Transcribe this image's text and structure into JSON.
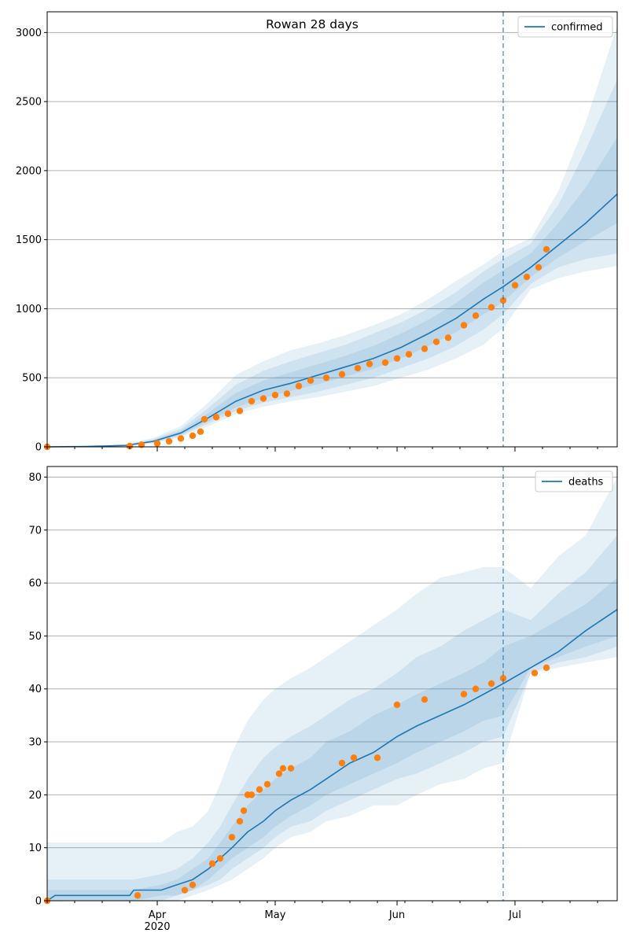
{
  "figure_title": "Rowan 28 days",
  "colors": {
    "model_line": "#1f77b4",
    "observed": "#ff7f0e",
    "band": "#1f77b4",
    "grid": "#b0b0b0",
    "forecast_marker": "#1f77b4"
  },
  "x_axis": {
    "ticks": [
      {
        "date": "2020-04-01",
        "label": "Apr"
      },
      {
        "date": "2020-05-01",
        "label": "May"
      },
      {
        "date": "2020-06-01",
        "label": "Jun"
      },
      {
        "date": "2020-07-01",
        "label": "Jul"
      }
    ],
    "year_label": "2020",
    "forecast_date": "2020-06-28"
  },
  "chart_data": [
    {
      "type": "line",
      "name": "confirmed",
      "legend": "confirmed",
      "legend_position": "top-right",
      "xlim": [
        "2020-03-04",
        "2020-07-27"
      ],
      "ylim": [
        0,
        3150
      ],
      "yticks": [
        0,
        500,
        1000,
        1500,
        2000,
        2500,
        3000
      ],
      "grid": "y",
      "dates": [
        "2020-03-04",
        "2020-03-14",
        "2020-03-24",
        "2020-03-31",
        "2020-04-07",
        "2020-04-14",
        "2020-04-21",
        "2020-04-28",
        "2020-05-05",
        "2020-05-12",
        "2020-05-19",
        "2020-05-26",
        "2020-06-02",
        "2020-06-09",
        "2020-06-16",
        "2020-06-23",
        "2020-06-28",
        "2020-07-05",
        "2020-07-12",
        "2020-07-19",
        "2020-07-27"
      ],
      "model": [
        0,
        2,
        10,
        40,
        100,
        210,
        330,
        410,
        460,
        520,
        580,
        640,
        720,
        820,
        930,
        1070,
        1160,
        1300,
        1460,
        1620,
        1830
      ],
      "bands": [
        {
          "lower": [
            0,
            0,
            5,
            25,
            70,
            150,
            240,
            290,
            330,
            360,
            400,
            440,
            500,
            560,
            640,
            740,
            860,
            1140,
            1220,
            1270,
            1310
          ],
          "upper": [
            0,
            5,
            18,
            65,
            150,
            320,
            520,
            620,
            700,
            750,
            810,
            880,
            960,
            1070,
            1200,
            1320,
            1420,
            1510,
            1850,
            2350,
            3050
          ]
        },
        {
          "lower": [
            0,
            1,
            6,
            30,
            80,
            170,
            260,
            320,
            360,
            400,
            450,
            500,
            570,
            640,
            730,
            850,
            960,
            1180,
            1300,
            1360,
            1400
          ],
          "upper": [
            0,
            3,
            15,
            55,
            130,
            280,
            450,
            550,
            620,
            680,
            740,
            820,
            900,
            1000,
            1120,
            1270,
            1360,
            1470,
            1750,
            2150,
            2660
          ]
        },
        {
          "lower": [
            0,
            1,
            8,
            33,
            88,
            185,
            285,
            355,
            405,
            455,
            510,
            565,
            640,
            730,
            830,
            960,
            1050,
            1230,
            1370,
            1490,
            1620
          ],
          "upper": [
            0,
            3,
            12,
            48,
            115,
            245,
            390,
            480,
            540,
            600,
            660,
            730,
            820,
            920,
            1040,
            1190,
            1280,
            1400,
            1620,
            1880,
            2240
          ]
        }
      ],
      "observed_dates": [
        "2020-03-04",
        "2020-03-25",
        "2020-03-28",
        "2020-04-01",
        "2020-04-04",
        "2020-04-07",
        "2020-04-10",
        "2020-04-12",
        "2020-04-13",
        "2020-04-16",
        "2020-04-19",
        "2020-04-22",
        "2020-04-25",
        "2020-04-28",
        "2020-05-01",
        "2020-05-04",
        "2020-05-07",
        "2020-05-10",
        "2020-05-14",
        "2020-05-18",
        "2020-05-22",
        "2020-05-25",
        "2020-05-29",
        "2020-06-01",
        "2020-06-04",
        "2020-06-08",
        "2020-06-11",
        "2020-06-14",
        "2020-06-18",
        "2020-06-21",
        "2020-06-25",
        "2020-06-28",
        "2020-07-01",
        "2020-07-04",
        "2020-07-07",
        "2020-07-09"
      ],
      "observed": [
        0,
        5,
        15,
        25,
        40,
        60,
        80,
        110,
        200,
        215,
        240,
        260,
        330,
        350,
        375,
        385,
        440,
        480,
        500,
        525,
        570,
        600,
        610,
        640,
        670,
        710,
        760,
        790,
        880,
        950,
        1010,
        1060,
        1170,
        1230,
        1300,
        1430
      ]
    },
    {
      "type": "line",
      "name": "deaths",
      "legend": "deaths",
      "legend_position": "top-right",
      "xlim": [
        "2020-03-04",
        "2020-07-27"
      ],
      "ylim": [
        0,
        82
      ],
      "yticks": [
        0,
        10,
        20,
        30,
        40,
        50,
        60,
        70,
        80
      ],
      "grid": "y",
      "dates": [
        "2020-03-04",
        "2020-03-06",
        "2020-03-25",
        "2020-03-26",
        "2020-04-02",
        "2020-04-06",
        "2020-04-10",
        "2020-04-14",
        "2020-04-17",
        "2020-04-20",
        "2020-04-24",
        "2020-04-28",
        "2020-05-01",
        "2020-05-05",
        "2020-05-10",
        "2020-05-14",
        "2020-05-20",
        "2020-05-26",
        "2020-06-01",
        "2020-06-06",
        "2020-06-12",
        "2020-06-18",
        "2020-06-23",
        "2020-06-28",
        "2020-07-05",
        "2020-07-12",
        "2020-07-19",
        "2020-07-27"
      ],
      "model": [
        0,
        1,
        1,
        2,
        2,
        3,
        4,
        6,
        8,
        10,
        13,
        15,
        17,
        19,
        21,
        23,
        26,
        28,
        31,
        33,
        35,
        37,
        39,
        41,
        44,
        47,
        51,
        55
      ],
      "bands": [
        {
          "lower": [
            0,
            0,
            0,
            0,
            0,
            0,
            1,
            2,
            3,
            4,
            6,
            8,
            10,
            12,
            13,
            15,
            16,
            18,
            18,
            20,
            22,
            23,
            25,
            26,
            43,
            44,
            45,
            46
          ],
          "upper": [
            11,
            11,
            11,
            11,
            11,
            13,
            14,
            17,
            22,
            28,
            34,
            38,
            40,
            42,
            44,
            46,
            49,
            52,
            55,
            58,
            61,
            62,
            63,
            63,
            59,
            65,
            69,
            80
          ]
        },
        {
          "lower": [
            0,
            0,
            0,
            0,
            0,
            1,
            2,
            3,
            4,
            6,
            8,
            10,
            12,
            14,
            15,
            17,
            19,
            21,
            23,
            24,
            26,
            28,
            30,
            31,
            43,
            45,
            46,
            48
          ],
          "upper": [
            4,
            4,
            4,
            4,
            5,
            6,
            8,
            11,
            14,
            18,
            23,
            27,
            29,
            31,
            33,
            35,
            38,
            40,
            43,
            46,
            48,
            51,
            53,
            55,
            53,
            58,
            62,
            69
          ]
        },
        {
          "lower": [
            0,
            0,
            0,
            0,
            1,
            1,
            2,
            4,
            6,
            8,
            10,
            12,
            14,
            16,
            18,
            20,
            22,
            24,
            26,
            28,
            30,
            32,
            34,
            35,
            44,
            46,
            48,
            50
          ],
          "upper": [
            2,
            2,
            2,
            2,
            3,
            4,
            6,
            8,
            11,
            14,
            18,
            21,
            23,
            25,
            27,
            30,
            32,
            35,
            37,
            39,
            41,
            43,
            45,
            48,
            50,
            53,
            56,
            61
          ]
        }
      ],
      "observed_dates": [
        "2020-03-04",
        "2020-03-27",
        "2020-04-08",
        "2020-04-10",
        "2020-04-15",
        "2020-04-17",
        "2020-04-20",
        "2020-04-22",
        "2020-04-23",
        "2020-04-24",
        "2020-04-25",
        "2020-04-27",
        "2020-04-29",
        "2020-05-02",
        "2020-05-03",
        "2020-05-05",
        "2020-05-18",
        "2020-05-21",
        "2020-05-27",
        "2020-06-01",
        "2020-06-08",
        "2020-06-18",
        "2020-06-21",
        "2020-06-25",
        "2020-06-28",
        "2020-07-06",
        "2020-07-09"
      ],
      "observed": [
        0,
        1,
        2,
        3,
        7,
        8,
        12,
        15,
        17,
        20,
        20,
        21,
        22,
        24,
        25,
        25,
        26,
        27,
        27,
        37,
        38,
        39,
        40,
        41,
        42,
        43,
        44
      ]
    }
  ]
}
